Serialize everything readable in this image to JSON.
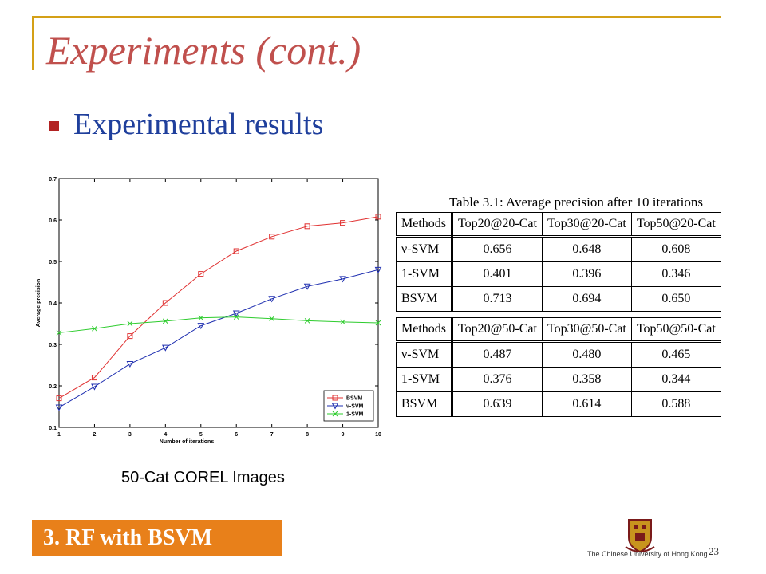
{
  "slide": {
    "title": "Experiments (cont.)",
    "subtitle": "Experimental results",
    "caption": "50-Cat COREL Images",
    "section_label": "3. RF  with BSVM",
    "university": "The Chinese University of Hong Kong",
    "page_number": "23",
    "colors": {
      "title": "#c0504d",
      "subtitle": "#1f3f9c",
      "accent": "#e8801a",
      "frame": "#d4a017",
      "bullet": "#b22222"
    }
  },
  "table": {
    "caption": "Table 3.1:  Average precision after 10 iterations",
    "blocks": [
      {
        "header": [
          "Methods",
          "Top20@20-Cat",
          "Top30@20-Cat",
          "Top50@20-Cat"
        ],
        "rows": [
          [
            "ν-SVM",
            "0.656",
            "0.648",
            "0.608"
          ],
          [
            "1-SVM",
            "0.401",
            "0.396",
            "0.346"
          ],
          [
            "BSVM",
            "0.713",
            "0.694",
            "0.650"
          ]
        ]
      },
      {
        "header": [
          "Methods",
          "Top20@50-Cat",
          "Top30@50-Cat",
          "Top50@50-Cat"
        ],
        "rows": [
          [
            "ν-SVM",
            "0.487",
            "0.480",
            "0.465"
          ],
          [
            "1-SVM",
            "0.376",
            "0.358",
            "0.344"
          ],
          [
            "BSVM",
            "0.639",
            "0.614",
            "0.588"
          ]
        ]
      }
    ]
  },
  "chart_data": {
    "type": "line",
    "title": "",
    "xlabel": "Number of iterations",
    "ylabel": "Average precision",
    "x": [
      1,
      2,
      3,
      4,
      5,
      6,
      7,
      8,
      9,
      10
    ],
    "xlim": [
      1,
      10
    ],
    "ylim": [
      0.1,
      0.7
    ],
    "xticks": [
      "1",
      "2",
      "3",
      "4",
      "5",
      "6",
      "7",
      "8",
      "9",
      "10"
    ],
    "yticks": [
      "0.1",
      "0.2",
      "0.3",
      "0.4",
      "0.5",
      "0.6",
      "0.7"
    ],
    "grid": false,
    "legend_position": "bottom-right",
    "series": [
      {
        "name": "BSVM",
        "color": "#e03030",
        "marker": "square",
        "values": [
          0.17,
          0.22,
          0.32,
          0.4,
          0.47,
          0.525,
          0.56,
          0.585,
          0.593,
          0.608
        ]
      },
      {
        "name": "ν-SVM",
        "color": "#1f2fb0",
        "marker": "triangle-down",
        "values": [
          0.148,
          0.198,
          0.253,
          0.292,
          0.345,
          0.375,
          0.41,
          0.44,
          0.458,
          0.48
        ]
      },
      {
        "name": "1-SVM",
        "color": "#2ecc2e",
        "marker": "x",
        "values": [
          0.328,
          0.338,
          0.35,
          0.356,
          0.364,
          0.366,
          0.362,
          0.357,
          0.354,
          0.352
        ]
      }
    ]
  }
}
